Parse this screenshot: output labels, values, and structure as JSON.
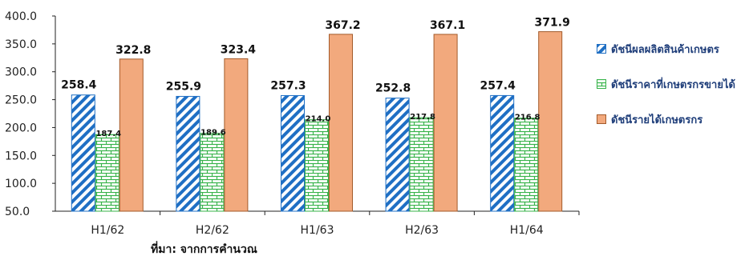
{
  "chart_data": {
    "type": "bar",
    "categories": [
      "H1/62",
      "H2/62",
      "H1/63",
      "H2/63",
      "H1/64"
    ],
    "series": [
      {
        "name": "ดัชนีผลผลิตสินค้าเกษตร",
        "values": [
          258.4,
          255.9,
          257.3,
          252.8,
          257.4
        ],
        "color": "#1f6fc4",
        "pattern": "diagonal"
      },
      {
        "name": "ดัชนีราคาที่เกษตรกรขายได้",
        "values": [
          187.4,
          189.6,
          214.0,
          217.8,
          216.8
        ],
        "color": "#37b34a",
        "pattern": "brick"
      },
      {
        "name": "ดัชนีรายได้เกษตรกร",
        "values": [
          322.8,
          323.4,
          367.2,
          367.1,
          371.9
        ],
        "color": "#f2a97d",
        "pattern": "solid"
      }
    ],
    "ylim": [
      50,
      400
    ],
    "yticks": [
      "50.0",
      "100.0",
      "150.0",
      "200.0",
      "250.0",
      "300.0",
      "350.0",
      "400.0"
    ],
    "legend_position": "right",
    "grid": false
  },
  "source_note": "ที่มา: จากการคำนวณ"
}
